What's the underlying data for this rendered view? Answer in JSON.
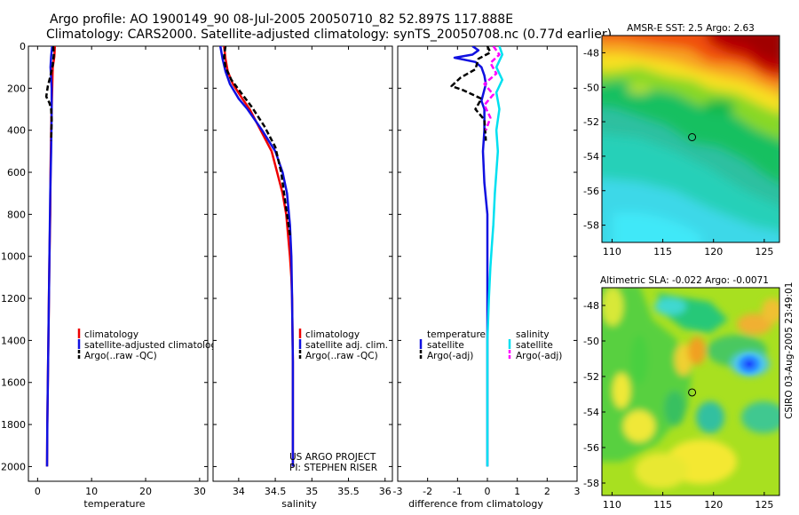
{
  "header": {
    "title_line1": "Argo profile: AO 1900149_90 08-Jul-2005 20050710_82 52.897S 117.888E",
    "title_line2": "Climatology: CARS2000. Satellite-adjusted climatology: synTS_20050708.nc (0.77d earlier)"
  },
  "colors": {
    "climatology": "#ee0000",
    "satellite": "#1010e0",
    "argo": "#000000",
    "salinity_sat": "#00e0f0",
    "salinity_argo": "#ff00ff"
  },
  "chart_data": [
    {
      "type": "line",
      "xlabel": "temperature",
      "ylabel": "",
      "xlim": [
        -1.7,
        31.5
      ],
      "ylim": [
        2070,
        0
      ],
      "xticks": [
        0,
        10,
        20,
        30
      ],
      "yticks": [
        0,
        200,
        400,
        600,
        800,
        1000,
        1200,
        1400,
        1600,
        1800,
        2000
      ],
      "legend": [
        "climatology",
        "satellite-adjusted climatology",
        "Argo(..raw -QC)"
      ],
      "legend_position": "lower-right",
      "series": [
        {
          "name": "climatology",
          "color": "#ee0000",
          "style": "solid",
          "x": [
            3.2,
            3.1,
            2.8,
            2.7,
            2.6,
            2.5,
            2.4,
            2.35,
            2.2,
            2.1,
            1.95,
            1.8,
            1.75
          ],
          "y": [
            0,
            50,
            100,
            200,
            300,
            400,
            600,
            800,
            1000,
            1200,
            1500,
            1800,
            2000
          ]
        },
        {
          "name": "satellite-adjusted climatology",
          "color": "#1010e0",
          "style": "solid",
          "x": [
            2.7,
            2.5,
            2.4,
            2.5,
            2.6,
            2.6,
            2.5,
            2.35,
            2.2,
            2.1,
            1.95,
            1.8,
            1.75
          ],
          "y": [
            0,
            50,
            100,
            150,
            200,
            300,
            500,
            700,
            1000,
            1200,
            1500,
            1800,
            2000
          ]
        },
        {
          "name": "Argo(..raw -QC)",
          "color": "#000000",
          "style": "dashed",
          "x": [
            2.9,
            3.0,
            2.8,
            2.4,
            1.9,
            1.6,
            2.2,
            2.5,
            2.6,
            2.55,
            2.5
          ],
          "y": [
            0,
            40,
            90,
            140,
            190,
            240,
            270,
            300,
            350,
            400,
            450
          ]
        }
      ]
    },
    {
      "type": "line",
      "xlabel": "salinity",
      "ylabel": "",
      "xlim": [
        33.65,
        36.1
      ],
      "ylim": [
        2070,
        0
      ],
      "xticks": [
        34,
        34.5,
        35,
        35.5,
        36
      ],
      "legend": [
        "climatology",
        "satellite adj. clim.",
        "Argo(..raw -QC)"
      ],
      "legend_position": "lower-right",
      "annotations": [
        "US ARGO PROJECT",
        "PI: STEPHEN RISER"
      ],
      "series": [
        {
          "name": "climatology",
          "color": "#ee0000",
          "style": "solid",
          "x": [
            33.8,
            33.82,
            33.85,
            33.92,
            34.05,
            34.15,
            34.3,
            34.45,
            34.6,
            34.65,
            34.7,
            34.72,
            34.73,
            34.74,
            34.74
          ],
          "y": [
            0,
            60,
            120,
            180,
            250,
            300,
            400,
            500,
            700,
            800,
            1000,
            1100,
            1200,
            1500,
            2000
          ]
        },
        {
          "name": "satellite adj. clim.",
          "color": "#1010e0",
          "style": "solid",
          "x": [
            33.75,
            33.78,
            33.82,
            33.88,
            34.0,
            34.12,
            34.32,
            34.5,
            34.6,
            34.66,
            34.7,
            34.72,
            34.73,
            34.74,
            34.74
          ],
          "y": [
            0,
            60,
            120,
            180,
            250,
            300,
            400,
            500,
            600,
            700,
            850,
            1000,
            1200,
            1500,
            2000
          ]
        },
        {
          "name": "Argo(..raw -QC)",
          "color": "#000000",
          "style": "dashed",
          "x": [
            33.82,
            33.8,
            33.82,
            33.9,
            34.05,
            34.18,
            34.35,
            34.5,
            34.58,
            34.62,
            34.66,
            34.7
          ],
          "y": [
            0,
            50,
            100,
            160,
            230,
            290,
            380,
            480,
            600,
            700,
            800,
            900
          ]
        }
      ]
    },
    {
      "type": "line",
      "xlabel": "difference from climatology",
      "ylabel": "",
      "xlim": [
        -3,
        3
      ],
      "ylim": [
        2070,
        0
      ],
      "xticks": [
        -3,
        -2,
        -1,
        0,
        1,
        2,
        3
      ],
      "legend": [
        "temperature",
        "satellite",
        "Argo(-adj)",
        "salinity",
        "satellite",
        "Argo(-adj)"
      ],
      "legend_position": "lower-center",
      "series": [
        {
          "name": "temperature satellite",
          "color": "#1010e0",
          "style": "solid",
          "x": [
            -0.5,
            -0.3,
            -0.5,
            -1.1,
            -0.4,
            -0.2,
            -0.1,
            -0.05,
            -0.2,
            -0.1,
            -0.1,
            -0.15,
            -0.1,
            0,
            0,
            0
          ],
          "y": [
            0,
            20,
            40,
            55,
            75,
            100,
            140,
            180,
            260,
            300,
            400,
            500,
            650,
            800,
            1200,
            2000
          ]
        },
        {
          "name": "temperature Argo(-adj)",
          "color": "#000000",
          "style": "dashed",
          "x": [
            0,
            0.1,
            -0.3,
            -0.4,
            -0.9,
            -1.2,
            -0.8,
            -0.2,
            -0.4,
            -0.1,
            -0.05
          ],
          "y": [
            0,
            30,
            60,
            110,
            150,
            190,
            210,
            250,
            300,
            350,
            450
          ]
        },
        {
          "name": "salinity satellite",
          "color": "#00e0f0",
          "style": "solid",
          "x": [
            0.4,
            0.5,
            0.3,
            0.5,
            0.3,
            0.4,
            0.3,
            0.35,
            0.3,
            0.25,
            0.2,
            0.15,
            0.1,
            0.05,
            0,
            0
          ],
          "y": [
            0,
            40,
            100,
            160,
            220,
            300,
            400,
            500,
            600,
            700,
            850,
            950,
            1050,
            1200,
            1400,
            2000
          ]
        },
        {
          "name": "salinity Argo(-adj)",
          "color": "#ff00ff",
          "style": "dashed",
          "x": [
            0.2,
            0.4,
            0.1,
            0.3,
            -0.1,
            0.2,
            -0.1,
            0.1,
            -0.05
          ],
          "y": [
            0,
            40,
            80,
            130,
            180,
            230,
            280,
            340,
            400
          ]
        }
      ]
    },
    {
      "type": "heatmap",
      "title": "AMSR-E SST: 2.5 Argo: 2.63",
      "xlim": [
        109,
        126.5
      ],
      "ylim": [
        -59,
        -47
      ],
      "xticks": [
        110,
        115,
        120,
        125
      ],
      "yticks": [
        -48,
        -50,
        -52,
        -54,
        -56,
        -58
      ],
      "marker": {
        "lon": 117.888,
        "lat": -52.897
      }
    },
    {
      "type": "heatmap",
      "title": "Altimetric SLA: -0.022 Argo: -0.0071",
      "xlim": [
        109,
        126.5
      ],
      "ylim": [
        -58.7,
        -47
      ],
      "xticks": [
        110,
        115,
        120,
        125
      ],
      "yticks": [
        -48,
        -50,
        -52,
        -54,
        -56,
        -58
      ],
      "marker": {
        "lon": 117.888,
        "lat": -52.897
      }
    }
  ],
  "side_label": "CSIRO 03-Aug-2005 23:49:01"
}
